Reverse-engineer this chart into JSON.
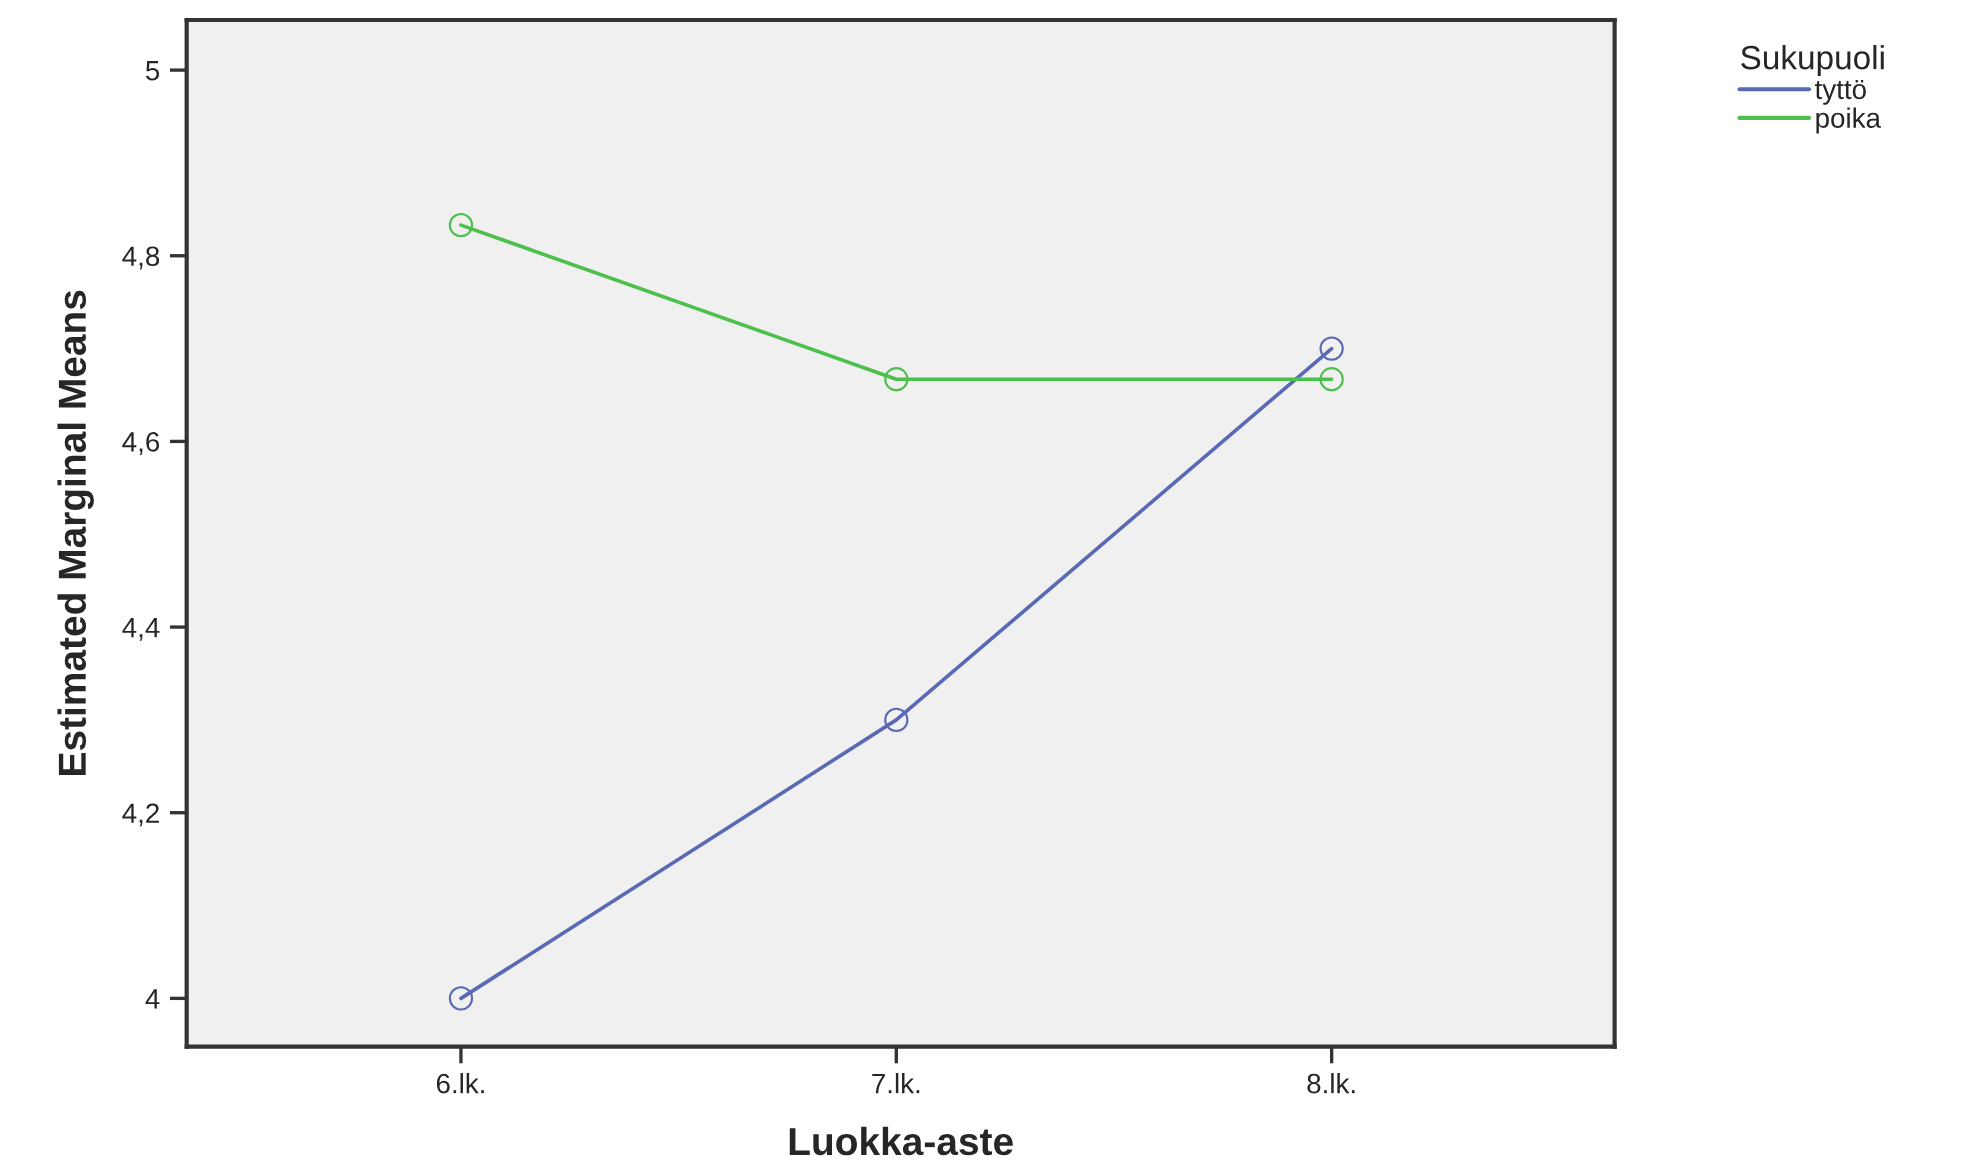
{
  "chart_data": {
    "type": "line",
    "xlabel": "Luokka-aste",
    "ylabel": "Estimated Marginal Means",
    "legend_title": "Sukupuoli",
    "categories": [
      "6.lk.",
      "7.lk.",
      "8.lk."
    ],
    "series": [
      {
        "name": "tyttö",
        "color": "#5a69b4",
        "values": [
          4.0,
          4.3,
          4.7
        ]
      },
      {
        "name": "poika",
        "color": "#4cbf4c",
        "values": [
          4.833,
          4.667,
          4.667
        ]
      }
    ],
    "ylim": [
      3.948,
      5.054
    ],
    "yticks": [
      {
        "value": 4,
        "label": "4"
      },
      {
        "value": 4.2,
        "label": "4,2"
      },
      {
        "value": 4.4,
        "label": "4,4"
      },
      {
        "value": 4.6,
        "label": "4,6"
      },
      {
        "value": 4.8,
        "label": "4,8"
      },
      {
        "value": 5,
        "label": "5"
      }
    ],
    "marker": "circle",
    "line_style": "solid",
    "grid": false,
    "legend": "top right"
  }
}
